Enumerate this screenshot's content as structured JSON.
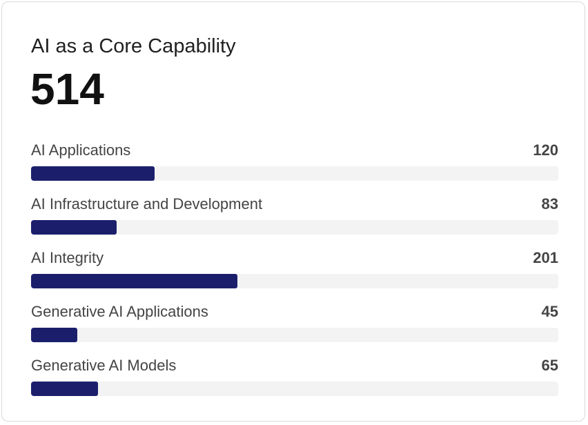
{
  "card": {
    "title": "AI as a Core Capability",
    "total": "514"
  },
  "colors": {
    "bar_fill": "#1b1f6b",
    "bar_track": "#f3f3f4"
  },
  "categories": [
    {
      "label": "AI Applications",
      "value": "120",
      "fill_fraction": 0.234
    },
    {
      "label": "AI Infrastructure and Development",
      "value": "83",
      "fill_fraction": 0.162
    },
    {
      "label": "AI Integrity",
      "value": "201",
      "fill_fraction": 0.392
    },
    {
      "label": "Generative AI Applications",
      "value": "45",
      "fill_fraction": 0.088
    },
    {
      "label": "Generative AI Models",
      "value": "65",
      "fill_fraction": 0.127
    }
  ]
}
